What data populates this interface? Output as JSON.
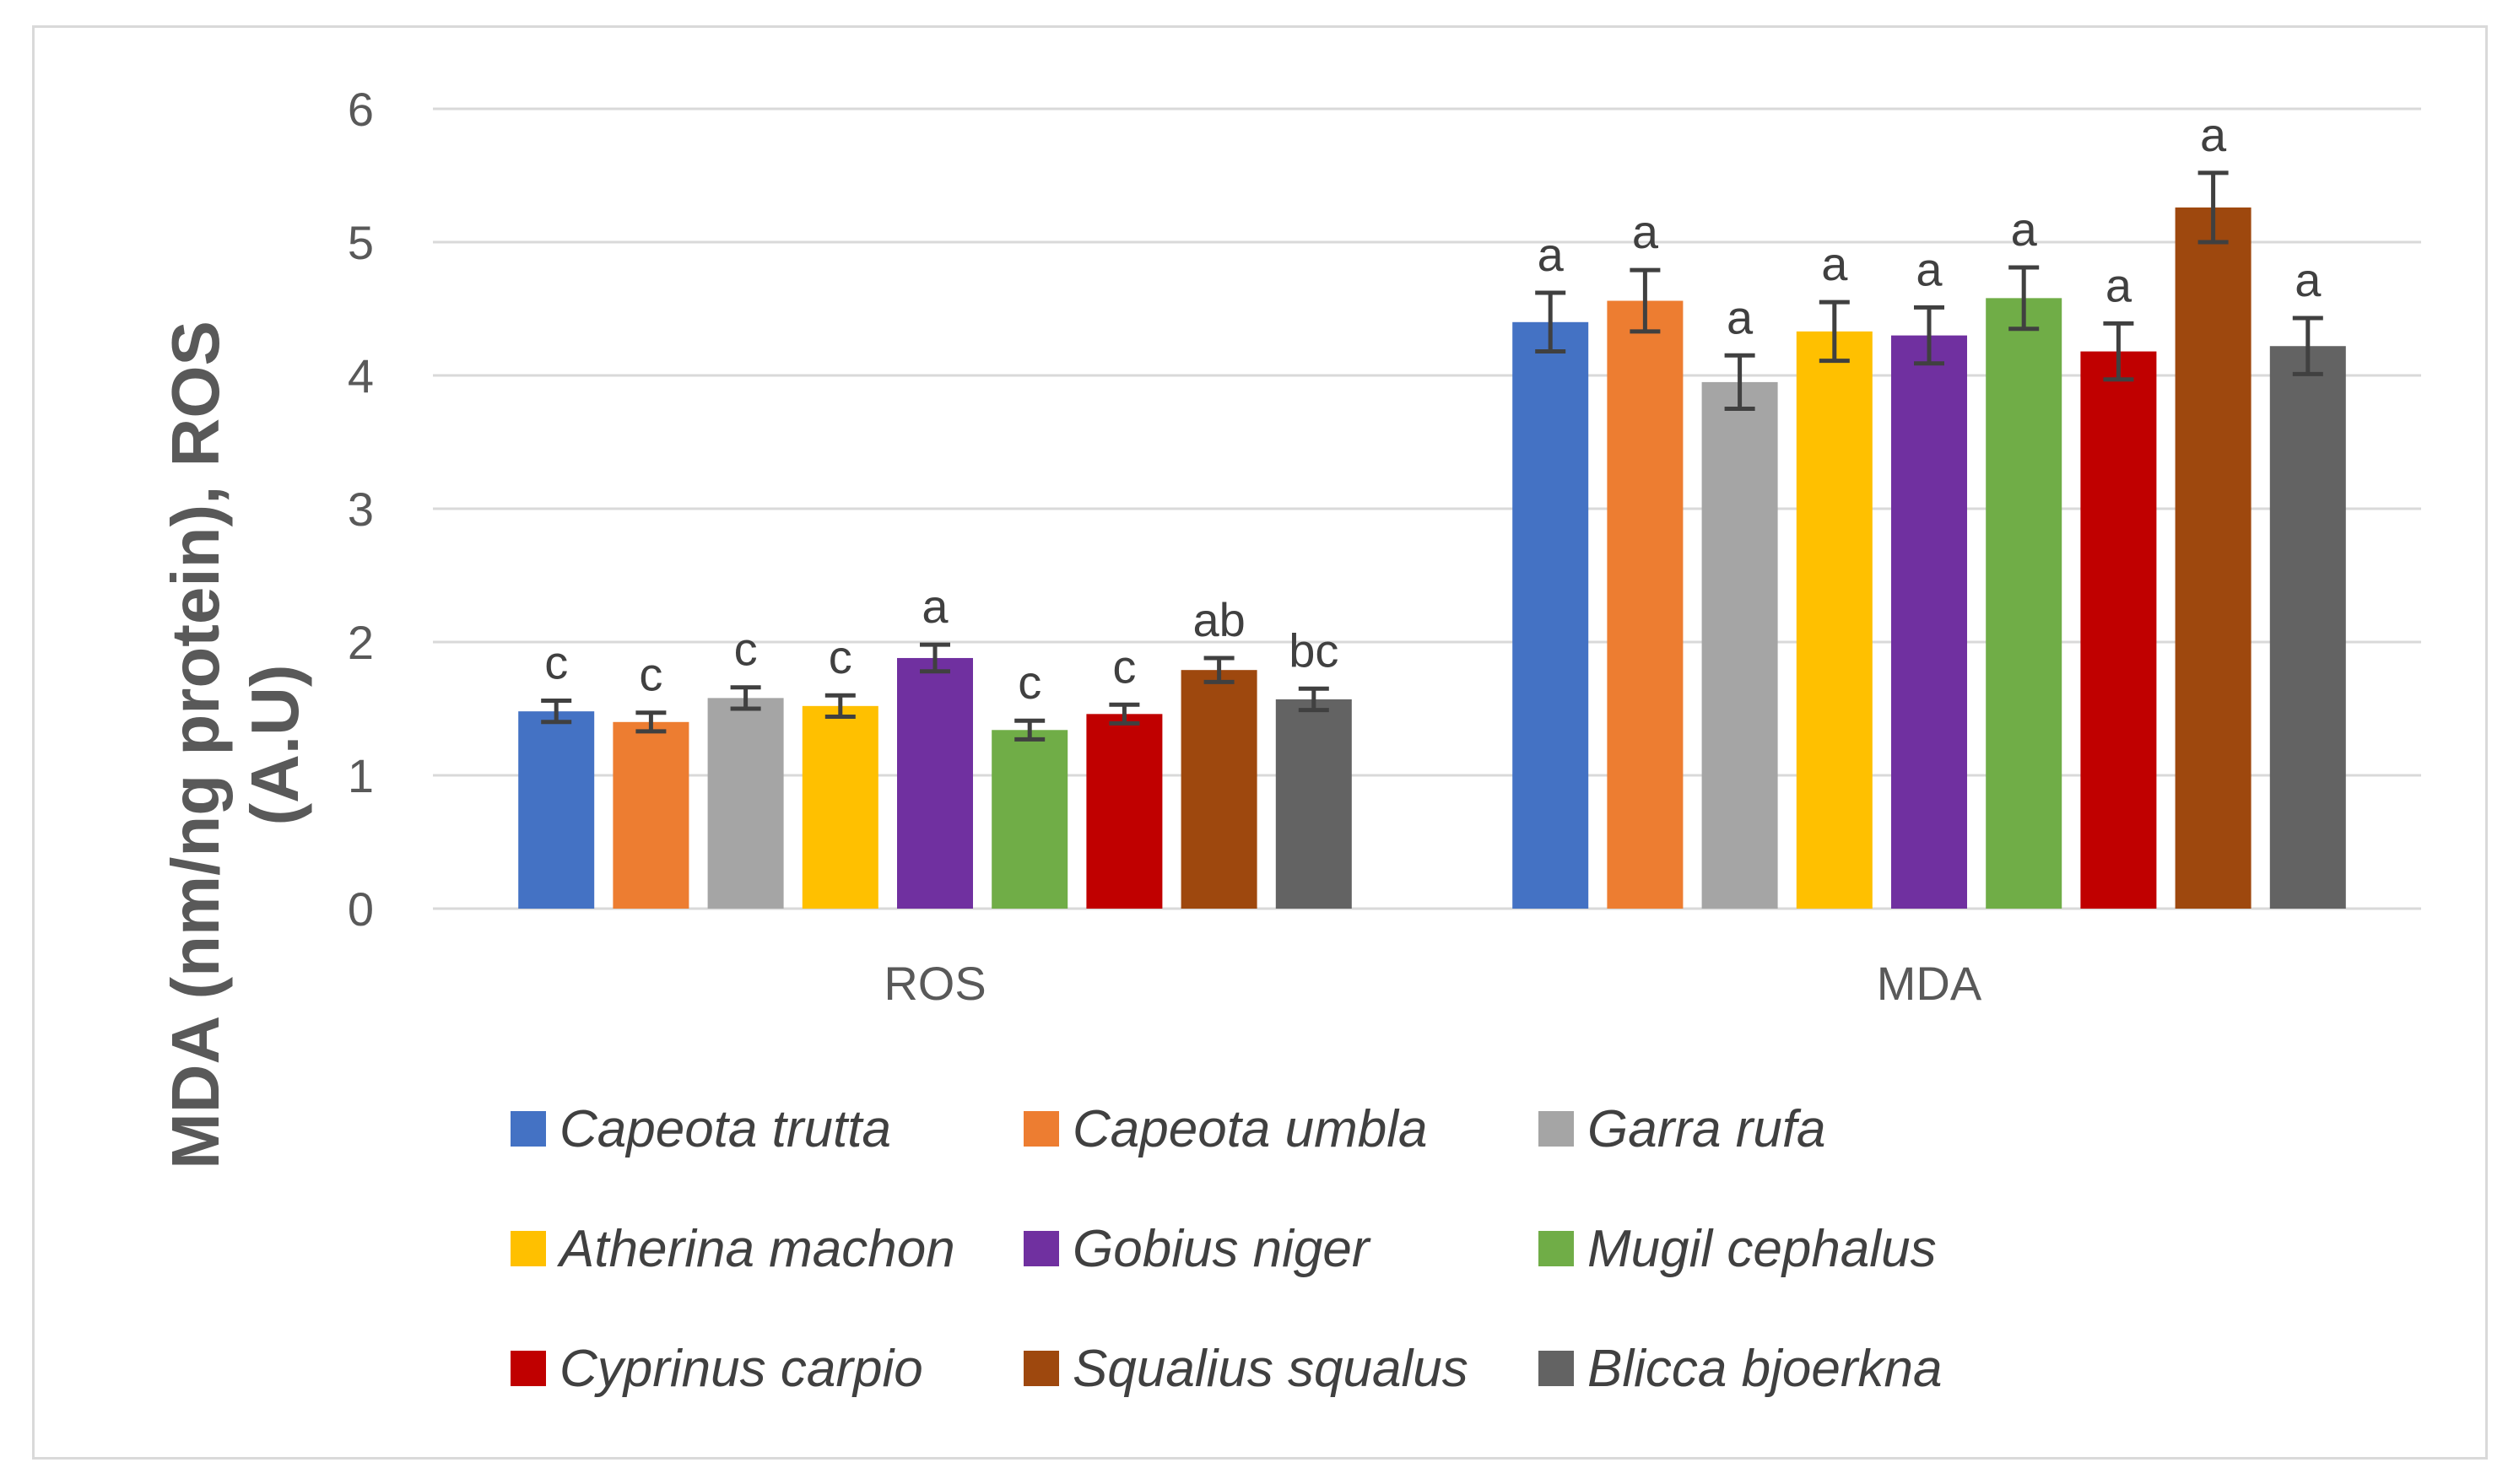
{
  "chart_data": {
    "type": "bar",
    "title": "",
    "xlabel": "",
    "ylabel": "MDA (nm/ng protein), ROS (A.U)",
    "ylabel_lines": [
      "MDA (nm/ng protein), ROS",
      "(A.U)"
    ],
    "ylim": [
      0,
      6
    ],
    "yticks": [
      0,
      1,
      2,
      3,
      4,
      5,
      6
    ],
    "grid": true,
    "legend_position": "bottom",
    "categories": [
      "ROS",
      "MDA"
    ],
    "series": [
      {
        "name": "Capeota trutta",
        "color": "#4472C4",
        "values": [
          1.48,
          4.4
        ],
        "errors": [
          0.08,
          0.22
        ],
        "labels": [
          "c",
          "a"
        ]
      },
      {
        "name": "Capeota umbla",
        "color": "#ED7D31",
        "values": [
          1.4,
          4.56
        ],
        "errors": [
          0.07,
          0.23
        ],
        "labels": [
          "c",
          "a"
        ]
      },
      {
        "name": "Garra rufa",
        "color": "#A5A5A5",
        "values": [
          1.58,
          3.95
        ],
        "errors": [
          0.08,
          0.2
        ],
        "labels": [
          "c",
          "a"
        ]
      },
      {
        "name": "Atherina machon",
        "color": "#FFC000",
        "values": [
          1.52,
          4.33
        ],
        "errors": [
          0.08,
          0.22
        ],
        "labels": [
          "c",
          "a"
        ]
      },
      {
        "name": "Gobius niger",
        "color": "#7030A0",
        "values": [
          1.88,
          4.3
        ],
        "errors": [
          0.1,
          0.21
        ],
        "labels": [
          "a",
          "a"
        ]
      },
      {
        "name": "Mugil cephalus",
        "color": "#70AD47",
        "values": [
          1.34,
          4.58
        ],
        "errors": [
          0.07,
          0.23
        ],
        "labels": [
          "c",
          "a"
        ]
      },
      {
        "name": "Cyprinus carpio",
        "color": "#C00000",
        "values": [
          1.46,
          4.18
        ],
        "errors": [
          0.07,
          0.21
        ],
        "labels": [
          "c",
          "a"
        ]
      },
      {
        "name": "Squalius squalus",
        "color": "#9E480E",
        "values": [
          1.79,
          5.26
        ],
        "errors": [
          0.09,
          0.26
        ],
        "labels": [
          "ab",
          "a"
        ]
      },
      {
        "name": "Blicca bjoerkna",
        "color": "#636363",
        "values": [
          1.57,
          4.22
        ],
        "errors": [
          0.08,
          0.21
        ],
        "labels": [
          "bc",
          "a"
        ]
      }
    ]
  }
}
